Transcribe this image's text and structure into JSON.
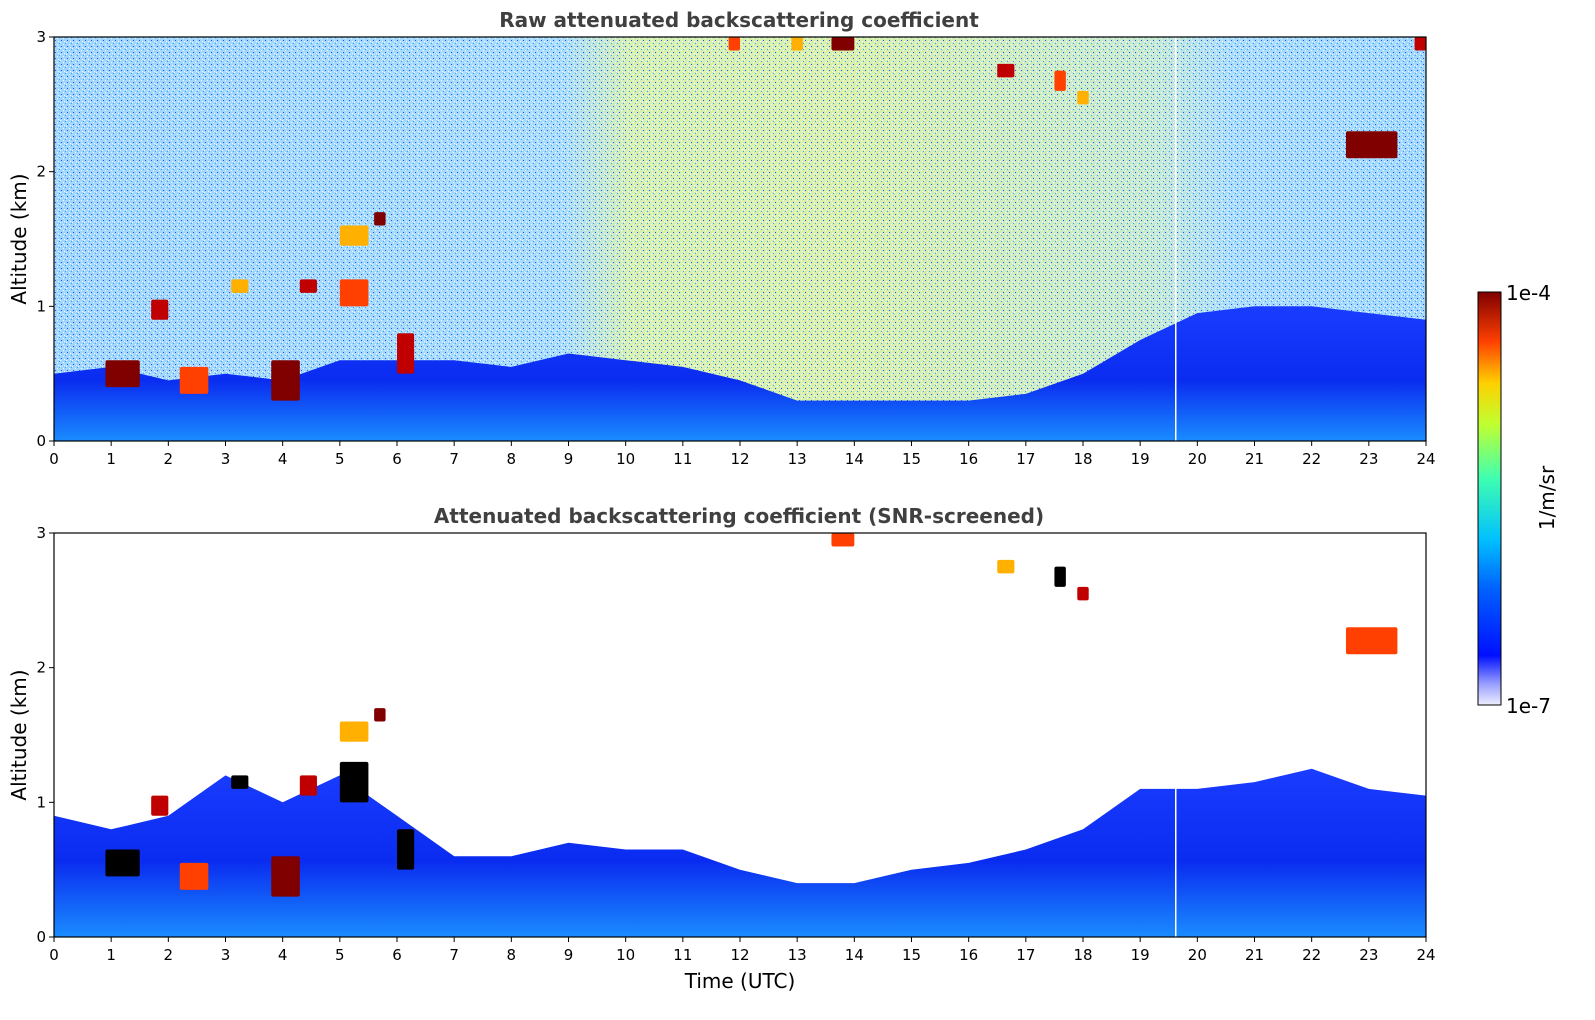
{
  "chart_data": [
    {
      "type": "heatmap",
      "title": "Raw attenuated backscattering coefficient",
      "xlabel": "",
      "ylabel": "Altitude (km)",
      "xlim": [
        0,
        24
      ],
      "ylim": [
        0,
        3
      ],
      "x_ticks": [
        "0",
        "1",
        "2",
        "3",
        "4",
        "5",
        "6",
        "7",
        "8",
        "9",
        "10",
        "11",
        "12",
        "13",
        "14",
        "15",
        "16",
        "17",
        "18",
        "19",
        "20",
        "21",
        "22",
        "23",
        "24"
      ],
      "y_ticks": [
        "0",
        "1",
        "2",
        "3"
      ],
      "aerosol_layer_top_km": [
        {
          "x": 0,
          "y": 0.5
        },
        {
          "x": 1,
          "y": 0.55
        },
        {
          "x": 2,
          "y": 0.45
        },
        {
          "x": 3,
          "y": 0.5
        },
        {
          "x": 4,
          "y": 0.45
        },
        {
          "x": 5,
          "y": 0.6
        },
        {
          "x": 6,
          "y": 0.6
        },
        {
          "x": 7,
          "y": 0.6
        },
        {
          "x": 8,
          "y": 0.55
        },
        {
          "x": 9,
          "y": 0.65
        },
        {
          "x": 10,
          "y": 0.6
        },
        {
          "x": 11,
          "y": 0.55
        },
        {
          "x": 12,
          "y": 0.45
        },
        {
          "x": 13,
          "y": 0.3
        },
        {
          "x": 14,
          "y": 0.3
        },
        {
          "x": 15,
          "y": 0.3
        },
        {
          "x": 16,
          "y": 0.3
        },
        {
          "x": 17,
          "y": 0.35
        },
        {
          "x": 18,
          "y": 0.5
        },
        {
          "x": 19,
          "y": 0.75
        },
        {
          "x": 20,
          "y": 0.95
        },
        {
          "x": 21,
          "y": 1.0
        },
        {
          "x": 22,
          "y": 1.0
        },
        {
          "x": 23,
          "y": 0.95
        },
        {
          "x": 24,
          "y": 0.9
        }
      ],
      "cloud_patches": [
        {
          "x0": 0.9,
          "x1": 1.5,
          "y0": 0.4,
          "y1": 0.6
        },
        {
          "x0": 1.7,
          "x1": 2.0,
          "y0": 0.9,
          "y1": 1.05
        },
        {
          "x0": 2.2,
          "x1": 2.7,
          "y0": 0.35,
          "y1": 0.55
        },
        {
          "x0": 3.1,
          "x1": 3.4,
          "y0": 1.1,
          "y1": 1.2
        },
        {
          "x0": 3.8,
          "x1": 4.3,
          "y0": 0.3,
          "y1": 0.6
        },
        {
          "x0": 4.3,
          "x1": 4.6,
          "y0": 1.1,
          "y1": 1.2
        },
        {
          "x0": 5.0,
          "x1": 5.5,
          "y0": 1.0,
          "y1": 1.2
        },
        {
          "x0": 5.0,
          "x1": 5.5,
          "y0": 1.45,
          "y1": 1.6
        },
        {
          "x0": 5.6,
          "x1": 5.8,
          "y0": 1.6,
          "y1": 1.7
        },
        {
          "x0": 6.0,
          "x1": 6.3,
          "y0": 0.5,
          "y1": 0.8
        },
        {
          "x0": 11.8,
          "x1": 12.0,
          "y0": 2.9,
          "y1": 3.0
        },
        {
          "x0": 12.9,
          "x1": 13.1,
          "y0": 2.9,
          "y1": 3.0
        },
        {
          "x0": 13.6,
          "x1": 14.0,
          "y0": 2.9,
          "y1": 3.0
        },
        {
          "x0": 16.5,
          "x1": 16.8,
          "y0": 2.7,
          "y1": 2.8
        },
        {
          "x0": 17.5,
          "x1": 17.7,
          "y0": 2.6,
          "y1": 2.75
        },
        {
          "x0": 17.9,
          "x1": 18.1,
          "y0": 2.5,
          "y1": 2.6
        },
        {
          "x0": 22.6,
          "x1": 23.5,
          "y0": 2.1,
          "y1": 2.3
        },
        {
          "x0": 23.8,
          "x1": 24.0,
          "y0": 2.9,
          "y1": 3.0
        }
      ]
    },
    {
      "type": "heatmap",
      "title": "Attenuated backscattering coefficient (SNR-screened)",
      "xlabel": "Time (UTC)",
      "ylabel": "Altitude (km)",
      "xlim": [
        0,
        24
      ],
      "ylim": [
        0,
        3
      ],
      "x_ticks": [
        "0",
        "1",
        "2",
        "3",
        "4",
        "5",
        "6",
        "7",
        "8",
        "9",
        "10",
        "11",
        "12",
        "13",
        "14",
        "15",
        "16",
        "17",
        "18",
        "19",
        "20",
        "21",
        "22",
        "23",
        "24"
      ],
      "y_ticks": [
        "0",
        "1",
        "2",
        "3"
      ],
      "aerosol_layer_top_km": [
        {
          "x": 0,
          "y": 0.9
        },
        {
          "x": 1,
          "y": 0.8
        },
        {
          "x": 2,
          "y": 0.9
        },
        {
          "x": 3,
          "y": 1.2
        },
        {
          "x": 4,
          "y": 1.0
        },
        {
          "x": 5,
          "y": 1.2
        },
        {
          "x": 6,
          "y": 0.9
        },
        {
          "x": 7,
          "y": 0.6
        },
        {
          "x": 8,
          "y": 0.6
        },
        {
          "x": 9,
          "y": 0.7
        },
        {
          "x": 10,
          "y": 0.65
        },
        {
          "x": 11,
          "y": 0.65
        },
        {
          "x": 12,
          "y": 0.5
        },
        {
          "x": 13,
          "y": 0.4
        },
        {
          "x": 14,
          "y": 0.4
        },
        {
          "x": 15,
          "y": 0.5
        },
        {
          "x": 16,
          "y": 0.55
        },
        {
          "x": 17,
          "y": 0.65
        },
        {
          "x": 18,
          "y": 0.8
        },
        {
          "x": 19,
          "y": 1.1
        },
        {
          "x": 20,
          "y": 1.1
        },
        {
          "x": 21,
          "y": 1.15
        },
        {
          "x": 22,
          "y": 1.25
        },
        {
          "x": 23,
          "y": 1.1
        },
        {
          "x": 24,
          "y": 1.05
        }
      ],
      "cloud_patches": [
        {
          "x0": 0.9,
          "x1": 1.5,
          "y0": 0.45,
          "y1": 0.65
        },
        {
          "x0": 1.7,
          "x1": 2.0,
          "y0": 0.9,
          "y1": 1.05
        },
        {
          "x0": 2.2,
          "x1": 2.7,
          "y0": 0.35,
          "y1": 0.55
        },
        {
          "x0": 3.1,
          "x1": 3.4,
          "y0": 1.1,
          "y1": 1.2
        },
        {
          "x0": 3.8,
          "x1": 4.3,
          "y0": 0.3,
          "y1": 0.6
        },
        {
          "x0": 4.3,
          "x1": 4.6,
          "y0": 1.05,
          "y1": 1.2
        },
        {
          "x0": 5.0,
          "x1": 5.5,
          "y0": 1.0,
          "y1": 1.3
        },
        {
          "x0": 5.0,
          "x1": 5.5,
          "y0": 1.45,
          "y1": 1.6
        },
        {
          "x0": 5.6,
          "x1": 5.8,
          "y0": 1.6,
          "y1": 1.7
        },
        {
          "x0": 6.0,
          "x1": 6.3,
          "y0": 0.5,
          "y1": 0.8
        },
        {
          "x0": 13.6,
          "x1": 14.0,
          "y0": 2.9,
          "y1": 3.0
        },
        {
          "x0": 16.5,
          "x1": 16.8,
          "y0": 2.7,
          "y1": 2.8
        },
        {
          "x0": 17.5,
          "x1": 17.7,
          "y0": 2.6,
          "y1": 2.75
        },
        {
          "x0": 17.9,
          "x1": 18.1,
          "y0": 2.5,
          "y1": 2.6
        },
        {
          "x0": 22.6,
          "x1": 23.5,
          "y0": 2.1,
          "y1": 2.3
        }
      ]
    }
  ],
  "colorbar": {
    "label": "1/m/sr",
    "max_label": "1e-4",
    "min_label": "1e-7",
    "colormap": "jet",
    "scale": "log"
  },
  "colors": {
    "background": "#ffffff",
    "title": "#404040",
    "low": "#0000ff",
    "mid": "#00c8ff",
    "high": "#800000"
  }
}
